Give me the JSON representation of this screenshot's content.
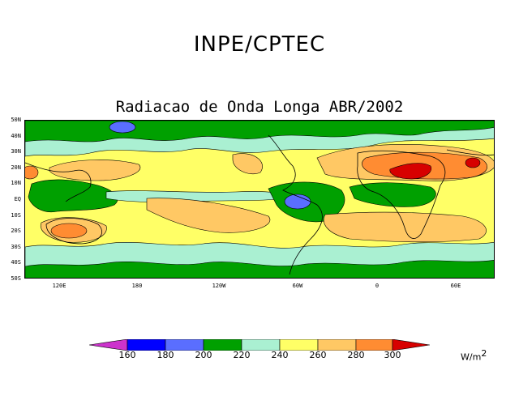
{
  "header": {
    "organization": "INPE/CPTEC",
    "map_title": "Radiacao de Onda Longa ABR/2002"
  },
  "map": {
    "variable": "Outgoing Longwave Radiation (OLR), monthly mean",
    "lat_labels": [
      "50N",
      "40N",
      "30N",
      "20N",
      "10N",
      "EQ",
      "10S",
      "20S",
      "30S",
      "40S",
      "50S"
    ],
    "lon_labels": [
      "120E",
      "180",
      "120W",
      "60W",
      "0",
      "60E"
    ]
  },
  "colorbar": {
    "unit": "W/m",
    "unit_exponent": "2",
    "tick_labels": [
      "160",
      "180",
      "200",
      "220",
      "240",
      "260",
      "280",
      "300"
    ],
    "bins": [
      {
        "range": "<160",
        "color": "#cc33cc"
      },
      {
        "range": "160-180",
        "color": "#0000ff"
      },
      {
        "range": "180-200",
        "color": "#5a6eff"
      },
      {
        "range": "200-220",
        "color": "#00a000"
      },
      {
        "range": "220-240",
        "color": "#aaf0d2"
      },
      {
        "range": "240-260",
        "color": "#ffff66"
      },
      {
        "range": "260-280",
        "color": "#ffc864"
      },
      {
        "range": "280-300",
        "color": "#ff8c32"
      },
      {
        "range": ">300",
        "color": "#d70000"
      }
    ]
  }
}
